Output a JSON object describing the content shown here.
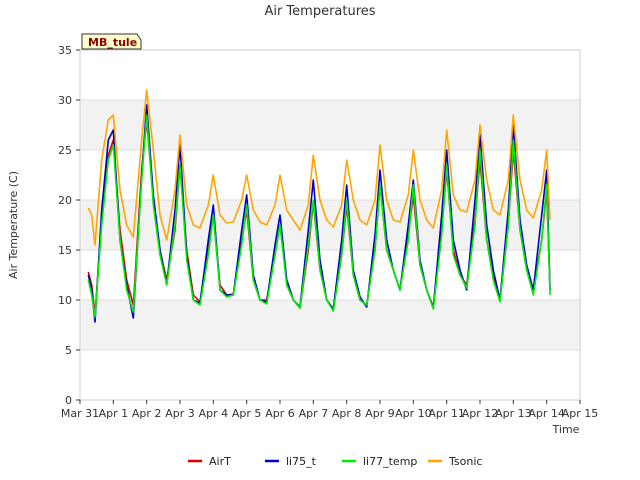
{
  "chart_data": {
    "type": "line",
    "title": "Air Temperatures",
    "xlabel": "Time",
    "ylabel": "Air Temperature (C)",
    "badge": "MB_tule",
    "xlim": [
      0,
      15
    ],
    "ylim": [
      0,
      35
    ],
    "x_ticks": [
      {
        "x": 0,
        "label": "Mar 31"
      },
      {
        "x": 1,
        "label": "Apr 1"
      },
      {
        "x": 2,
        "label": "Apr 2"
      },
      {
        "x": 3,
        "label": "Apr 3"
      },
      {
        "x": 4,
        "label": "Apr 4"
      },
      {
        "x": 5,
        "label": "Apr 5"
      },
      {
        "x": 6,
        "label": "Apr 6"
      },
      {
        "x": 7,
        "label": "Apr 7"
      },
      {
        "x": 8,
        "label": "Apr 8"
      },
      {
        "x": 9,
        "label": "Apr 9"
      },
      {
        "x": 10,
        "label": "Apr 10"
      },
      {
        "x": 11,
        "label": "Apr 11"
      },
      {
        "x": 12,
        "label": "Apr 12"
      },
      {
        "x": 13,
        "label": "Apr 13"
      },
      {
        "x": 14,
        "label": "Apr 14"
      },
      {
        "x": 15,
        "label": "Apr 15"
      }
    ],
    "y_ticks": [
      0,
      5,
      10,
      15,
      20,
      25,
      30,
      35
    ],
    "x": [
      0.25,
      0.35,
      0.45,
      0.65,
      0.85,
      1.0,
      1.2,
      1.4,
      1.6,
      1.85,
      2.0,
      2.2,
      2.4,
      2.6,
      2.85,
      3.0,
      3.2,
      3.4,
      3.6,
      3.85,
      4.0,
      4.2,
      4.4,
      4.6,
      4.85,
      5.0,
      5.2,
      5.4,
      5.6,
      5.85,
      6.0,
      6.2,
      6.4,
      6.6,
      6.85,
      7.0,
      7.2,
      7.4,
      7.6,
      7.85,
      8.0,
      8.2,
      8.4,
      8.6,
      8.85,
      9.0,
      9.2,
      9.4,
      9.6,
      9.85,
      10.0,
      10.2,
      10.4,
      10.6,
      10.85,
      11.0,
      11.2,
      11.4,
      11.6,
      11.85,
      12.0,
      12.2,
      12.4,
      12.6,
      12.85,
      13.0,
      13.2,
      13.4,
      13.6,
      13.85,
      14.0,
      14.1
    ],
    "series": [
      {
        "name": "AirT",
        "color": "#dd0000",
        "values": [
          12.8,
          11.5,
          8.5,
          18,
          24.5,
          26,
          17,
          12,
          9.5,
          23,
          28,
          20,
          15,
          12,
          17,
          23.5,
          15,
          10.5,
          9.8,
          15,
          18.5,
          11.5,
          10.5,
          10.6,
          16,
          19,
          12,
          10,
          10,
          14.5,
          17.5,
          12,
          10,
          9.2,
          15,
          19.8,
          13,
          10,
          9,
          14.5,
          19.5,
          12.5,
          10,
          9.5,
          15,
          21.5,
          15,
          13,
          11,
          16.5,
          20.5,
          13.5,
          11,
          9.3,
          17,
          23,
          15,
          12.5,
          11.5,
          18,
          24,
          16,
          12.5,
          10,
          17.5,
          25,
          17,
          13,
          11,
          16,
          21,
          11
        ]
      },
      {
        "name": "li75_t",
        "color": "#0000cc",
        "values": [
          12.5,
          11,
          7.8,
          19,
          26,
          27,
          16,
          11.5,
          8.2,
          22.5,
          29.5,
          20.5,
          15,
          11.5,
          19,
          25.5,
          14.5,
          10,
          9.7,
          16,
          19.5,
          11,
          10.5,
          10.5,
          17,
          20.5,
          12.5,
          10,
          9.8,
          15.5,
          18.5,
          12,
          10,
          9.3,
          17,
          22,
          14,
          10,
          9.1,
          16,
          21.5,
          13,
          10.3,
          9.3,
          16.5,
          23,
          16,
          13,
          11,
          17.5,
          22,
          14,
          11,
          9.2,
          18.5,
          25,
          16,
          13,
          11,
          20,
          26.5,
          17.5,
          13,
          10,
          19,
          27.5,
          18,
          13.5,
          11,
          18.5,
          23,
          11
        ]
      },
      {
        "name": "li77_temp",
        "color": "#00ee00",
        "values": [
          12,
          10.5,
          8.3,
          17.5,
          24,
          25.5,
          16,
          11,
          8.8,
          22,
          28.5,
          19.5,
          14.5,
          11.5,
          17.5,
          23.5,
          14,
          10,
          9.5,
          14.5,
          18.5,
          11,
          10.3,
          10.5,
          15.5,
          19.5,
          12,
          10,
          9.6,
          14.5,
          17.5,
          11.5,
          10,
          9.2,
          15.5,
          20,
          13,
          10,
          8.9,
          14.5,
          20,
          12.5,
          10,
          9.5,
          15,
          21.5,
          15,
          13,
          11,
          16,
          21.5,
          13.5,
          11,
          9.1,
          16.5,
          23.5,
          14.5,
          12.5,
          11.2,
          17.5,
          25,
          16,
          12,
          9.8,
          17.5,
          26,
          17,
          13,
          10.5,
          16,
          21.5,
          10.5
        ]
      },
      {
        "name": "Tsonic",
        "color": "#ffa500",
        "values": [
          19.2,
          18.5,
          15.5,
          24,
          28,
          28.5,
          21,
          17.5,
          16.3,
          26,
          31,
          25,
          18.5,
          16,
          21,
          26.5,
          19.5,
          17.5,
          17.2,
          19.5,
          22.5,
          18.5,
          17.7,
          17.8,
          20,
          22.5,
          19,
          17.8,
          17.5,
          19.5,
          22.5,
          19,
          18,
          17,
          19.5,
          24.5,
          20,
          18,
          17.3,
          19.5,
          24,
          20,
          18,
          17.5,
          20,
          25.5,
          20,
          18,
          17.8,
          20.5,
          25,
          20,
          18,
          17.2,
          21,
          27,
          20.5,
          19,
          18.8,
          22,
          27.5,
          22,
          19,
          18.5,
          22,
          28.5,
          22,
          19,
          18.2,
          21,
          25,
          18
        ]
      }
    ]
  }
}
